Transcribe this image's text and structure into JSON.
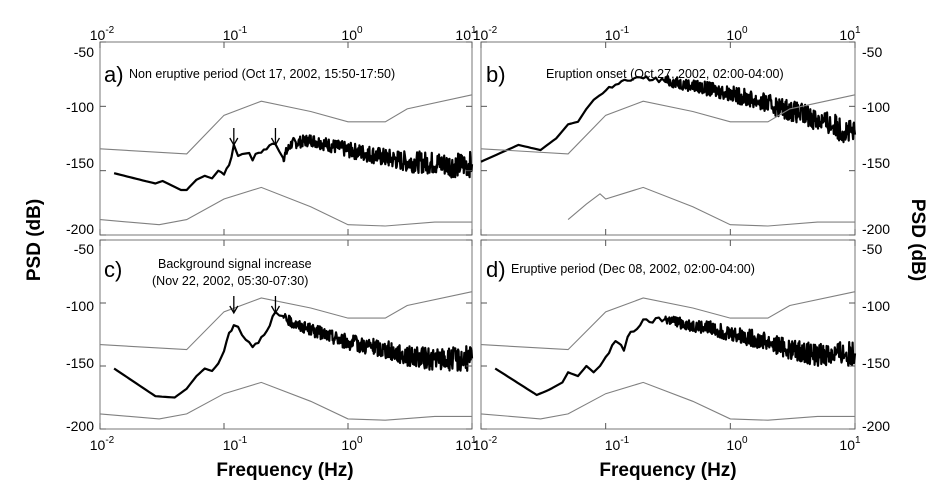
{
  "chart_data": [
    {
      "panel": "a)",
      "type": "line",
      "title": "Non eruptive period (Oct 17, 2002, 15:50-17:50)",
      "xlabel": "Frequency (Hz)",
      "ylabel": "PSD (dB)",
      "xscale": "log",
      "xlim": [
        0.01,
        10
      ],
      "ylim": [
        -200,
        -50
      ],
      "arrows_at_hz": [
        0.12,
        0.26
      ],
      "series": [
        {
          "style": "thick",
          "points": [
            [
              0.013,
              -152
            ],
            [
              0.028,
              -160
            ],
            [
              0.032,
              -158
            ],
            [
              0.045,
              -165
            ],
            [
              0.05,
              -165
            ],
            [
              0.06,
              -157
            ],
            [
              0.07,
              -154
            ],
            [
              0.08,
              -156
            ],
            [
              0.09,
              -150
            ],
            [
              0.1,
              -152
            ],
            [
              0.11,
              -145
            ],
            [
              0.12,
              -131
            ],
            [
              0.13,
              -138
            ],
            [
              0.15,
              -135
            ],
            [
              0.17,
              -141
            ],
            [
              0.19,
              -136
            ],
            [
              0.22,
              -133
            ],
            [
              0.26,
              -128
            ],
            [
              0.3,
              -140
            ],
            [
              0.35,
              -129
            ],
            [
              0.5,
              -126
            ],
            [
              0.7,
              -130
            ],
            [
              1.0,
              -134
            ],
            [
              1.5,
              -137
            ],
            [
              2.0,
              -140
            ],
            [
              3.0,
              -143
            ],
            [
              5.0,
              -144
            ],
            [
              7.0,
              -146
            ],
            [
              10.0,
              -145
            ]
          ]
        },
        {
          "style": "thin",
          "points": [
            [
              0.01,
              -133
            ],
            [
              0.05,
              -137
            ],
            [
              0.1,
              -107
            ],
            [
              0.2,
              -96
            ],
            [
              0.5,
              -104
            ],
            [
              1.0,
              -112
            ],
            [
              2.0,
              -112
            ],
            [
              3.0,
              -102
            ],
            [
              10.0,
              -91
            ]
          ]
        },
        {
          "style": "thin",
          "points": [
            [
              0.01,
              -188
            ],
            [
              0.03,
              -192
            ],
            [
              0.05,
              -188
            ],
            [
              0.1,
              -172
            ],
            [
              0.2,
              -163
            ],
            [
              0.5,
              -178
            ],
            [
              1.0,
              -192
            ],
            [
              2.0,
              -193
            ],
            [
              5.0,
              -190
            ],
            [
              10.0,
              -190
            ]
          ]
        }
      ]
    },
    {
      "panel": "b)",
      "type": "line",
      "title": "Eruption onset (Oct 27, 2002, 02:00-04:00)",
      "xlabel": "Frequency (Hz)",
      "ylabel": "PSD (dB)",
      "xscale": "log",
      "xlim": [
        0.01,
        10
      ],
      "ylim": [
        -200,
        -50
      ],
      "series": [
        {
          "style": "thick",
          "points": [
            [
              0.01,
              -143
            ],
            [
              0.02,
              -130
            ],
            [
              0.03,
              -134
            ],
            [
              0.04,
              -125
            ],
            [
              0.05,
              -114
            ],
            [
              0.06,
              -112
            ],
            [
              0.07,
              -102
            ],
            [
              0.08,
              -95
            ],
            [
              0.1,
              -88
            ],
            [
              0.12,
              -82
            ],
            [
              0.15,
              -80
            ],
            [
              0.2,
              -78
            ],
            [
              0.3,
              -80
            ],
            [
              0.5,
              -84
            ],
            [
              1.0,
              -90
            ],
            [
              2.0,
              -98
            ],
            [
              3.0,
              -103
            ],
            [
              5.0,
              -110
            ],
            [
              10.0,
              -122
            ]
          ]
        },
        {
          "style": "thin",
          "points": [
            [
              0.01,
              -133
            ],
            [
              0.05,
              -137
            ],
            [
              0.1,
              -107
            ],
            [
              0.2,
              -96
            ],
            [
              0.5,
              -104
            ],
            [
              1.0,
              -112
            ],
            [
              2.0,
              -112
            ],
            [
              3.0,
              -102
            ],
            [
              10.0,
              -91
            ]
          ]
        },
        {
          "style": "thin",
          "points": [
            [
              0.05,
              -188
            ],
            [
              0.07,
              -176
            ],
            [
              0.09,
              -168
            ],
            [
              0.1,
              -172
            ],
            [
              0.2,
              -163
            ],
            [
              0.5,
              -178
            ],
            [
              1.0,
              -192
            ],
            [
              2.0,
              -193
            ],
            [
              5.0,
              -190
            ],
            [
              10.0,
              -190
            ]
          ]
        }
      ]
    },
    {
      "panel": "c)",
      "type": "line",
      "title": "Background signal increase",
      "title_line2": "(Nov 22, 2002, 05:30-07:30)",
      "xlabel": "Frequency (Hz)",
      "ylabel": "PSD (dB)",
      "xscale": "log",
      "xlim": [
        0.01,
        10
      ],
      "ylim": [
        -200,
        -50
      ],
      "arrows_at_hz": [
        0.12,
        0.26
      ],
      "series": [
        {
          "style": "thick",
          "points": [
            [
              0.013,
              -152
            ],
            [
              0.028,
              -174
            ],
            [
              0.04,
              -175
            ],
            [
              0.05,
              -168
            ],
            [
              0.06,
              -158
            ],
            [
              0.07,
              -152
            ],
            [
              0.08,
              -154
            ],
            [
              0.09,
              -148
            ],
            [
              0.1,
              -138
            ],
            [
              0.11,
              -124
            ],
            [
              0.12,
              -116
            ],
            [
              0.13,
              -120
            ],
            [
              0.15,
              -128
            ],
            [
              0.17,
              -134
            ],
            [
              0.2,
              -128
            ],
            [
              0.26,
              -108
            ],
            [
              0.3,
              -112
            ],
            [
              0.4,
              -118
            ],
            [
              0.7,
              -126
            ],
            [
              1.0,
              -131
            ],
            [
              2.0,
              -137
            ],
            [
              3.0,
              -142
            ],
            [
              5.0,
              -145
            ],
            [
              10.0,
              -144
            ]
          ]
        },
        {
          "style": "thin",
          "points": [
            [
              0.01,
              -133
            ],
            [
              0.05,
              -137
            ],
            [
              0.1,
              -107
            ],
            [
              0.2,
              -96
            ],
            [
              0.5,
              -104
            ],
            [
              1.0,
              -112
            ],
            [
              2.0,
              -112
            ],
            [
              3.0,
              -102
            ],
            [
              10.0,
              -91
            ]
          ]
        },
        {
          "style": "thin",
          "points": [
            [
              0.01,
              -188
            ],
            [
              0.03,
              -192
            ],
            [
              0.05,
              -188
            ],
            [
              0.1,
              -172
            ],
            [
              0.2,
              -163
            ],
            [
              0.5,
              -178
            ],
            [
              1.0,
              -192
            ],
            [
              2.0,
              -193
            ],
            [
              5.0,
              -190
            ],
            [
              10.0,
              -190
            ]
          ]
        }
      ]
    },
    {
      "panel": "d)",
      "type": "line",
      "title": "Eruptive period (Dec 08, 2002, 02:00-04:00)",
      "xlabel": "Frequency (Hz)",
      "ylabel": "PSD (dB)",
      "xscale": "log",
      "xlim": [
        0.01,
        10
      ],
      "ylim": [
        -200,
        -50
      ],
      "series": [
        {
          "style": "thick",
          "points": [
            [
              0.013,
              -152
            ],
            [
              0.028,
              -173
            ],
            [
              0.035,
              -169
            ],
            [
              0.045,
              -163
            ],
            [
              0.05,
              -155
            ],
            [
              0.06,
              -158
            ],
            [
              0.07,
              -150
            ],
            [
              0.08,
              -155
            ],
            [
              0.09,
              -150
            ],
            [
              0.1,
              -143
            ],
            [
              0.12,
              -130
            ],
            [
              0.14,
              -138
            ],
            [
              0.15,
              -126
            ],
            [
              0.2,
              -115
            ],
            [
              0.3,
              -113
            ],
            [
              0.5,
              -118
            ],
            [
              0.7,
              -120
            ],
            [
              1.0,
              -124
            ],
            [
              2.0,
              -131
            ],
            [
              3.0,
              -137
            ],
            [
              5.0,
              -141
            ],
            [
              10.0,
              -140
            ]
          ]
        },
        {
          "style": "thin",
          "points": [
            [
              0.01,
              -133
            ],
            [
              0.05,
              -137
            ],
            [
              0.1,
              -107
            ],
            [
              0.2,
              -96
            ],
            [
              0.5,
              -104
            ],
            [
              1.0,
              -112
            ],
            [
              2.0,
              -112
            ],
            [
              3.0,
              -102
            ],
            [
              10.0,
              -91
            ]
          ]
        },
        {
          "style": "thin",
          "points": [
            [
              0.01,
              -188
            ],
            [
              0.03,
              -192
            ],
            [
              0.05,
              -188
            ],
            [
              0.1,
              -172
            ],
            [
              0.2,
              -163
            ],
            [
              0.5,
              -178
            ],
            [
              1.0,
              -192
            ],
            [
              2.0,
              -193
            ],
            [
              5.0,
              -190
            ],
            [
              10.0,
              -190
            ]
          ]
        }
      ]
    }
  ],
  "axes": {
    "xtick_mantissa": "10",
    "xtick_exponents": [
      "-2",
      "-1",
      "0",
      "1"
    ],
    "ytick_labels": [
      "-50",
      "-100",
      "-150",
      "-200"
    ],
    "xlabel": "Frequency (Hz)",
    "ylabel": "PSD (dB)"
  }
}
